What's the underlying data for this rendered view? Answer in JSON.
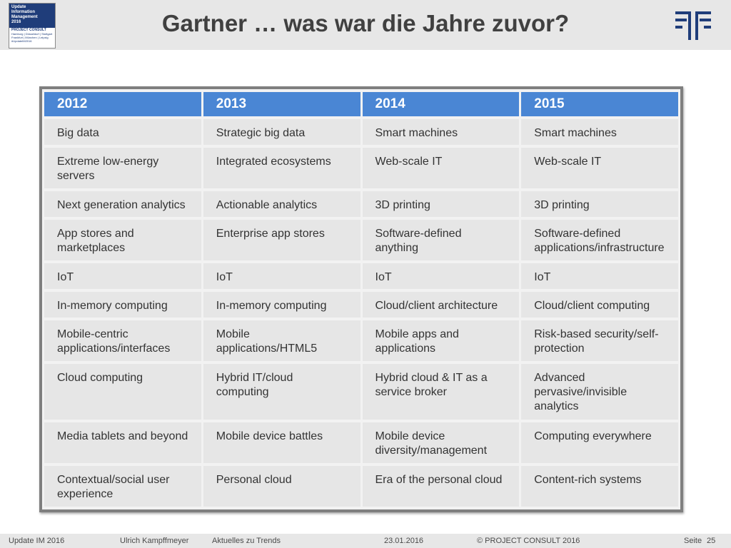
{
  "header": {
    "title": "Gartner … was war die Jahre zuvor?",
    "badge": {
      "lines": [
        "Update",
        "Information",
        "Management",
        "2016"
      ],
      "company": "PROJECT CONSULT",
      "cities": "Hamburg | Düsseldorf | Stuttgart",
      "cities2": "Frankfurt | München | Leipzig",
      "tag": "#UpdateIM2016"
    },
    "logo_icon": "project-consult-logo",
    "colors": {
      "header_bg": "#e7e7e7",
      "title": "#404040"
    }
  },
  "table": {
    "header_color": "#4a86d4",
    "cell_color": "#e6e6e6",
    "columns": [
      "2012",
      "2013",
      "2014",
      "2015"
    ],
    "rows": [
      [
        "Big data",
        "Strategic big data",
        "Smart machines",
        "Smart machines"
      ],
      [
        "Extreme low-energy servers",
        "Integrated ecosystems",
        "Web-scale IT",
        "Web-scale IT"
      ],
      [
        "Next generation analytics",
        "Actionable analytics",
        "3D printing",
        "3D printing"
      ],
      [
        "App stores and marketplaces",
        "Enterprise app stores",
        "Software-defined anything",
        "Software-defined applications/infrastructure"
      ],
      [
        "IoT",
        "IoT",
        "IoT",
        "IoT"
      ],
      [
        "In-memory computing",
        "In-memory computing",
        "Cloud/client architecture",
        "Cloud/client computing"
      ],
      [
        "Mobile-centric applications/interfaces",
        "Mobile applications/HTML5",
        "Mobile apps and applications",
        "Risk-based security/self-protection"
      ],
      [
        "Cloud computing",
        "Hybrid IT/cloud computing",
        "Hybrid cloud & IT as a service broker",
        "Advanced pervasive/invisible analytics"
      ],
      [
        "Media tablets and beyond",
        "Mobile device battles",
        "Mobile device diversity/management",
        "Computing everywhere"
      ],
      [
        "Contextual/social user experience",
        "Personal cloud",
        "Era of the personal cloud",
        "Content-rich systems"
      ]
    ]
  },
  "footer": {
    "event": "Update IM 2016",
    "author": "Ulrich Kampffmeyer",
    "topic": "Aktuelles zu Trends",
    "date": "23.01.2016",
    "copyright": "© PROJECT CONSULT 2016",
    "page_label": "Seite",
    "page_number": "25"
  }
}
